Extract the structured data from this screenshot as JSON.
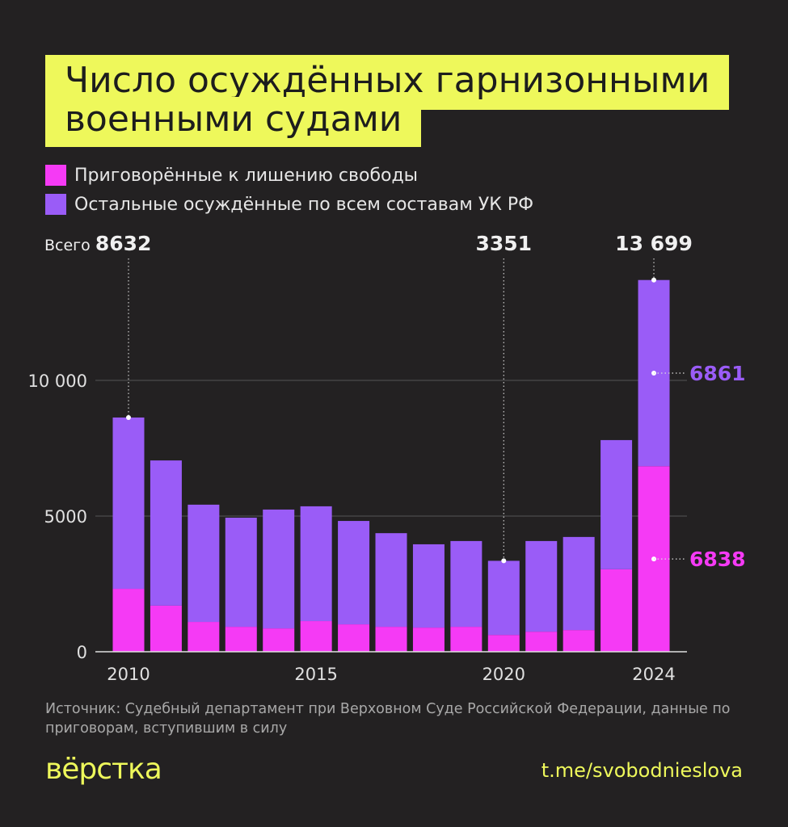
{
  "title_line1": "Число осуждённых гарнизонными",
  "title_line2": "военными судами",
  "source": "Источник: Судебный департамент при Верховном Суде Российской Федерации, данные по приговорам, вступившим в силу",
  "logo": "вёрстка",
  "link": "t.me/svobodnieslova",
  "colors": {
    "background": "#232122",
    "title_bg": "#eef85b",
    "imprisoned": "#f53af5",
    "other": "#9a5cf7"
  },
  "chart_data": {
    "type": "bar",
    "stacked": true,
    "title": "Число осуждённых гарнизонными военными судами",
    "categories": [
      2010,
      2011,
      2012,
      2013,
      2014,
      2015,
      2016,
      2017,
      2018,
      2019,
      2020,
      2021,
      2022,
      2023,
      2024
    ],
    "x_tick_labels": [
      "2010",
      "2015",
      "2020",
      "2024"
    ],
    "y_tick_labels": [
      "0",
      "5000",
      "10 000"
    ],
    "ylim": [
      0,
      14000
    ],
    "grid": true,
    "legend_position": "top-left",
    "series": [
      {
        "name": "Приговорённые к лишению свободы",
        "color": "#f53af5",
        "values": [
          2320,
          1700,
          1100,
          920,
          860,
          1130,
          1010,
          920,
          890,
          920,
          620,
          740,
          800,
          3040,
          6838
        ]
      },
      {
        "name": "Остальные осуждённые по всем составам УК РФ",
        "color": "#9a5cf7",
        "values": [
          6312,
          5350,
          4320,
          4020,
          4380,
          4230,
          3810,
          3450,
          3070,
          3160,
          2731,
          3340,
          3430,
          4760,
          6861
        ]
      }
    ],
    "totals": [
      8632,
      7050,
      5420,
      4940,
      5240,
      5360,
      4820,
      4370,
      3960,
      4080,
      3351,
      4080,
      4230,
      7800,
      13699
    ],
    "annotations": [
      {
        "prefix": "Всего",
        "label": "8632",
        "category": 2010
      },
      {
        "label": "3351",
        "category": 2020
      },
      {
        "label": "13 699",
        "category": 2024
      },
      {
        "label": "6861",
        "category": 2024,
        "series": 1
      },
      {
        "label": "6838",
        "category": 2024,
        "series": 0
      }
    ]
  }
}
